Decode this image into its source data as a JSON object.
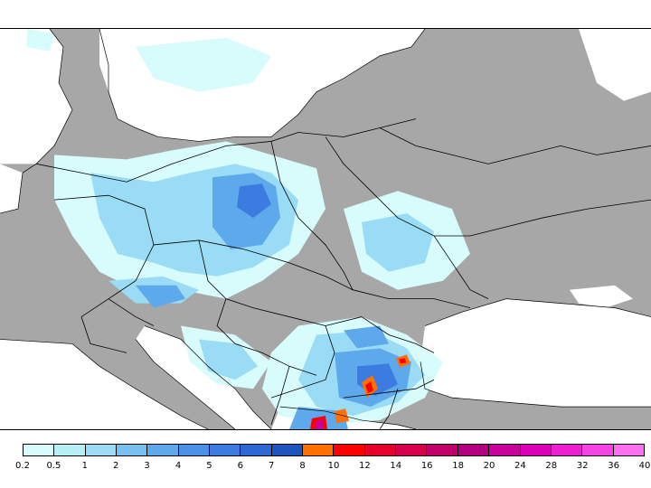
{
  "legend": {
    "labels": [
      "0.2",
      "0.5",
      "1",
      "2",
      "3",
      "4",
      "5",
      "6",
      "7",
      "8",
      "10",
      "12",
      "14",
      "16",
      "18",
      "20",
      "24",
      "28",
      "32",
      "36",
      "40"
    ],
    "colors": [
      "#d8fbfb",
      "#b4f0f4",
      "#9adcf5",
      "#78c0f0",
      "#5ea8ec",
      "#4a90e6",
      "#3c7ce0",
      "#2e68d4",
      "#1e54bc",
      "#ff7000",
      "#ff0000",
      "#e8002c",
      "#d8004c",
      "#c00068",
      "#b40080",
      "#c8009c",
      "#dc00b8",
      "#ec20d0",
      "#f444e4",
      "#fa70f0"
    ]
  },
  "colors": {
    "land": "#a7a7a7",
    "sea": "#ffffff",
    "border": "#000000"
  }
}
